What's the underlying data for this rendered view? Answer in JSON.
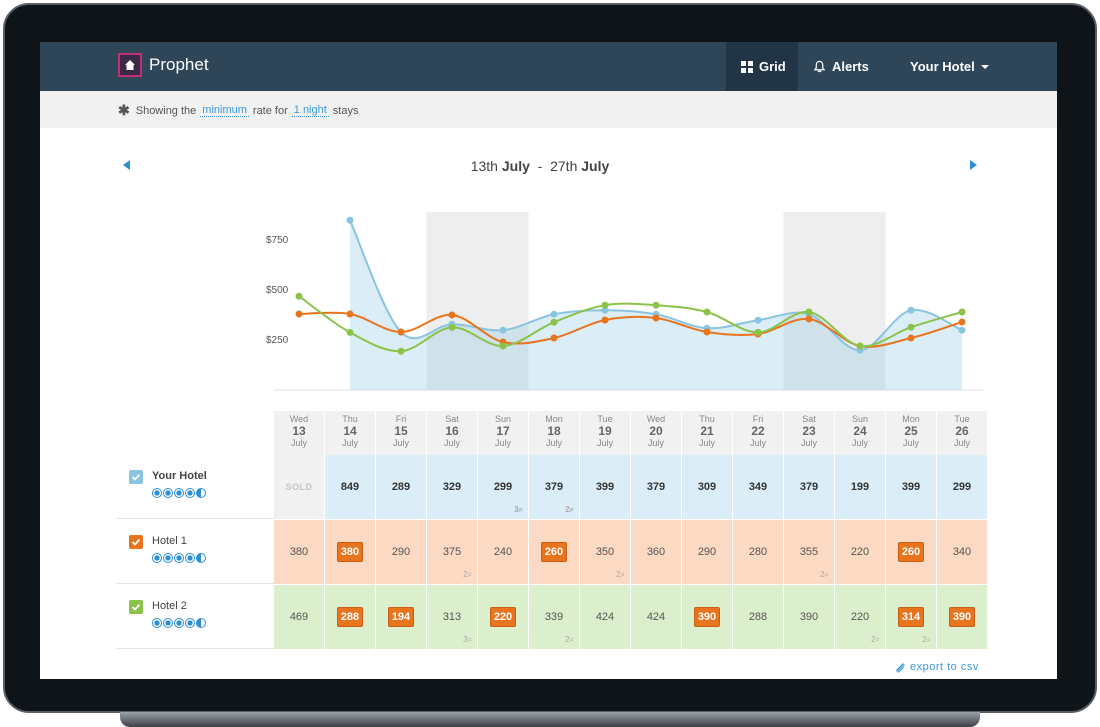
{
  "app": {
    "name": "Prophet"
  },
  "nav": {
    "grid_label": "Grid",
    "alerts_label": "Alerts",
    "hotel_label": "Your Hotel"
  },
  "filter": {
    "prefix": "Showing the",
    "rate_type": "minimum",
    "middle": "rate for",
    "stay_length": "1 night",
    "suffix": "stays"
  },
  "daterange": {
    "start_num": "13th",
    "start_month": "July",
    "sep": "-",
    "end_num": "27th",
    "end_month": "July"
  },
  "colors": {
    "your_hotel": "#89c4e1",
    "hotel_1": "#e8741e",
    "hotel_2": "#8bc34a",
    "nav_bg": "#2f4659",
    "accent": "#2f8fd3"
  },
  "columns": [
    {
      "dow": "Wed",
      "day": "13",
      "month": "July",
      "weekend": false
    },
    {
      "dow": "Thu",
      "day": "14",
      "month": "July",
      "weekend": false
    },
    {
      "dow": "Fri",
      "day": "15",
      "month": "July",
      "weekend": false
    },
    {
      "dow": "Sat",
      "day": "16",
      "month": "July",
      "weekend": true
    },
    {
      "dow": "Sun",
      "day": "17",
      "month": "July",
      "weekend": true
    },
    {
      "dow": "Mon",
      "day": "18",
      "month": "July",
      "weekend": false
    },
    {
      "dow": "Tue",
      "day": "19",
      "month": "July",
      "weekend": false
    },
    {
      "dow": "Wed",
      "day": "20",
      "month": "July",
      "weekend": false
    },
    {
      "dow": "Thu",
      "day": "21",
      "month": "July",
      "weekend": false
    },
    {
      "dow": "Fri",
      "day": "22",
      "month": "July",
      "weekend": false
    },
    {
      "dow": "Sat",
      "day": "23",
      "month": "July",
      "weekend": true
    },
    {
      "dow": "Sun",
      "day": "24",
      "month": "July",
      "weekend": true
    },
    {
      "dow": "Mon",
      "day": "25",
      "month": "July",
      "weekend": false
    },
    {
      "dow": "Tue",
      "day": "26",
      "month": "July",
      "weekend": false
    }
  ],
  "rows": [
    {
      "name": "Your Hotel",
      "color": "#89c4e1",
      "bg": "#dbeef7",
      "bold": true,
      "cells": [
        {
          "value": "SOLD",
          "sold": true
        },
        {
          "value": "849"
        },
        {
          "value": "289"
        },
        {
          "value": "329"
        },
        {
          "value": "299",
          "minstay": "3"
        },
        {
          "value": "379",
          "minstay": "2"
        },
        {
          "value": "399"
        },
        {
          "value": "379"
        },
        {
          "value": "309"
        },
        {
          "value": "349"
        },
        {
          "value": "379"
        },
        {
          "value": "199"
        },
        {
          "value": "399"
        },
        {
          "value": "299"
        }
      ]
    },
    {
      "name": "Hotel 1",
      "color": "#e8741e",
      "bg": "#fbd9c2",
      "bold": false,
      "cells": [
        {
          "value": "380"
        },
        {
          "value": "380",
          "badge": true
        },
        {
          "value": "290"
        },
        {
          "value": "375",
          "minstay": "2"
        },
        {
          "value": "240"
        },
        {
          "value": "260",
          "badge": true
        },
        {
          "value": "350",
          "minstay": "2"
        },
        {
          "value": "360"
        },
        {
          "value": "290"
        },
        {
          "value": "280"
        },
        {
          "value": "355",
          "minstay": "2"
        },
        {
          "value": "220"
        },
        {
          "value": "260",
          "badge": true
        },
        {
          "value": "340"
        }
      ]
    },
    {
      "name": "Hotel 2",
      "color": "#8bc34a",
      "bg": "#dcefcc",
      "bold": false,
      "cells": [
        {
          "value": "469"
        },
        {
          "value": "288",
          "badge": true
        },
        {
          "value": "194",
          "badge": true
        },
        {
          "value": "313",
          "minstay": "3"
        },
        {
          "value": "220",
          "badge": true
        },
        {
          "value": "339",
          "minstay": "2"
        },
        {
          "value": "424"
        },
        {
          "value": "424"
        },
        {
          "value": "390",
          "badge": true
        },
        {
          "value": "288"
        },
        {
          "value": "390"
        },
        {
          "value": "220",
          "minstay": "2"
        },
        {
          "value": "314",
          "badge": true,
          "minstay": "2"
        },
        {
          "value": "390",
          "badge": true
        }
      ]
    }
  ],
  "chart_data": {
    "type": "line",
    "x": [
      "13",
      "14",
      "15",
      "16",
      "17",
      "18",
      "19",
      "20",
      "21",
      "22",
      "23",
      "24",
      "25",
      "26"
    ],
    "yticks": [
      "$250",
      "$500",
      "$750"
    ],
    "ytick_values": [
      250,
      500,
      750
    ],
    "ylim": [
      0,
      1000
    ],
    "series": [
      {
        "key": "your_hotel",
        "values": [
          null,
          849,
          289,
          329,
          299,
          379,
          399,
          379,
          309,
          349,
          379,
          199,
          399,
          299
        ]
      },
      {
        "key": "hotel_1",
        "values": [
          380,
          380,
          290,
          375,
          240,
          260,
          350,
          360,
          290,
          280,
          355,
          220,
          260,
          340
        ]
      },
      {
        "key": "hotel_2",
        "values": [
          469,
          288,
          194,
          313,
          220,
          339,
          424,
          424,
          390,
          288,
          390,
          220,
          314,
          390
        ]
      }
    ]
  },
  "export": {
    "label": "export to csv"
  }
}
